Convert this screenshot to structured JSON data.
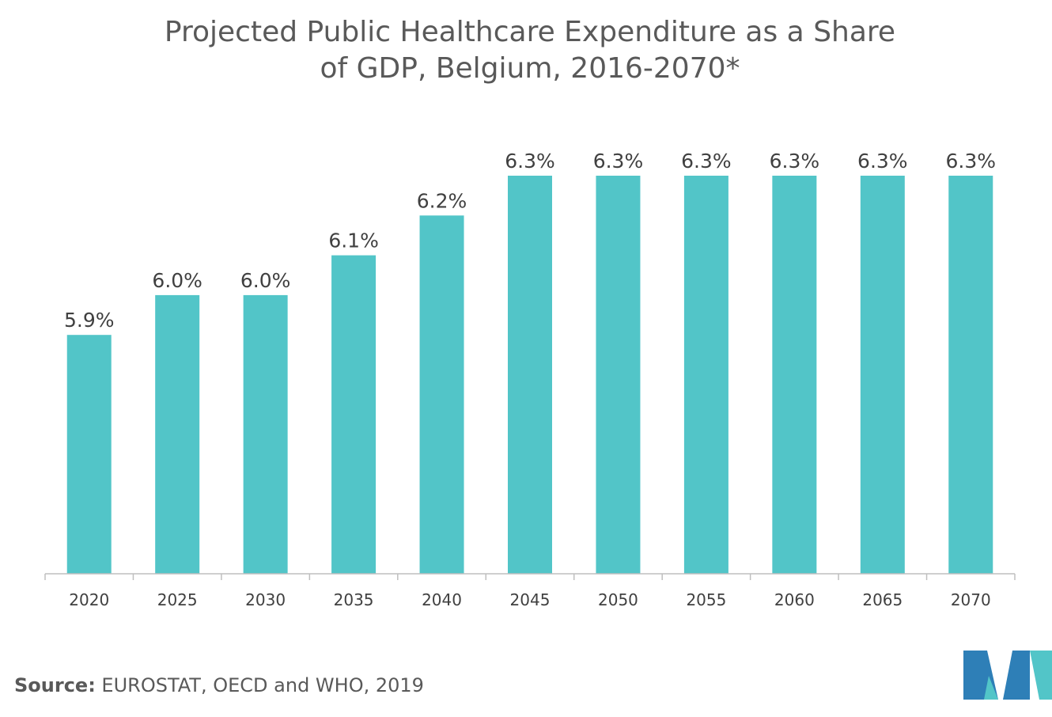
{
  "chart_data": {
    "type": "bar",
    "title_lines": [
      "Projected Public Healthcare Expenditure as a Share",
      "of GDP, Belgium, 2016-2070*"
    ],
    "categories": [
      "2020",
      "2025",
      "2030",
      "2035",
      "2040",
      "2045",
      "2050",
      "2055",
      "2060",
      "2065",
      "2070"
    ],
    "values": [
      5.9,
      6.0,
      6.0,
      6.1,
      6.2,
      6.3,
      6.3,
      6.3,
      6.3,
      6.3,
      6.3
    ],
    "data_labels": [
      "5.9%",
      "6.0%",
      "6.0%",
      "6.1%",
      "6.2%",
      "6.3%",
      "6.3%",
      "6.3%",
      "6.3%",
      "6.3%",
      "6.3%"
    ],
    "xlabel": "",
    "ylabel": "",
    "ylim": [
      5.3,
      6.3
    ],
    "bar_color": "#52C5C8",
    "grid": false,
    "legend": "none"
  },
  "source": {
    "label": "Source:",
    "text": " EUROSTAT, OECD and WHO, 2019"
  },
  "logo": {
    "colors": [
      "#2E7FB7",
      "#52C5C8"
    ]
  }
}
